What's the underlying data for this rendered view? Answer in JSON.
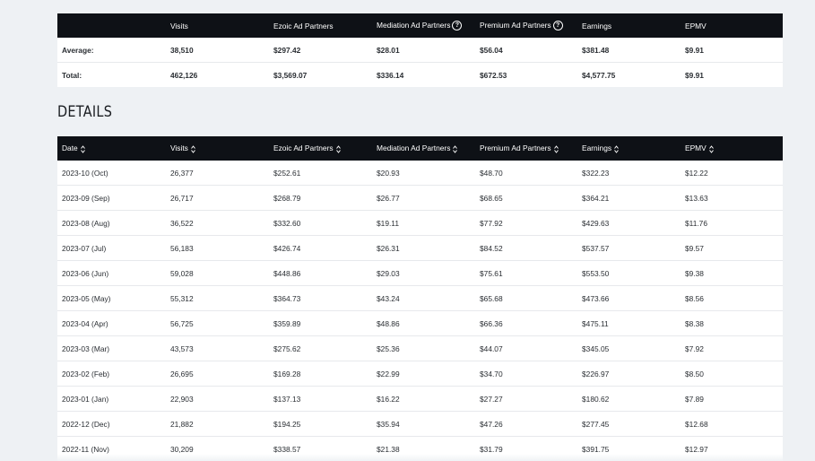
{
  "summary": {
    "headers": [
      "",
      "Visits",
      "Ezoic Ad Partners",
      "Mediation Ad Partners",
      "Premium Ad Partners",
      "Earnings",
      "EPMV"
    ],
    "rows": [
      [
        "Average:",
        "38,510",
        "$297.42",
        "$28.01",
        "$56.04",
        "$381.48",
        "$9.91"
      ],
      [
        "Total:",
        "462,126",
        "$3,569.07",
        "$336.14",
        "$672.53",
        "$4,577.75",
        "$9.91"
      ]
    ]
  },
  "details": {
    "title": "DETAILS",
    "headers": [
      "Date",
      "Visits",
      "Ezoic Ad Partners",
      "Mediation Ad Partners",
      "Premium Ad Partners",
      "Earnings",
      "EPMV"
    ],
    "rows": [
      [
        "2023-10 (Oct)",
        "26,377",
        "$252.61",
        "$20.93",
        "$48.70",
        "$322.23",
        "$12.22"
      ],
      [
        "2023-09 (Sep)",
        "26,717",
        "$268.79",
        "$26.77",
        "$68.65",
        "$364.21",
        "$13.63"
      ],
      [
        "2023-08 (Aug)",
        "36,522",
        "$332.60",
        "$19.11",
        "$77.92",
        "$429.63",
        "$11.76"
      ],
      [
        "2023-07 (Jul)",
        "56,183",
        "$426.74",
        "$26.31",
        "$84.52",
        "$537.57",
        "$9.57"
      ],
      [
        "2023-06 (Jun)",
        "59,028",
        "$448.86",
        "$29.03",
        "$75.61",
        "$553.50",
        "$9.38"
      ],
      [
        "2023-05 (May)",
        "55,312",
        "$364.73",
        "$43.24",
        "$65.68",
        "$473.66",
        "$8.56"
      ],
      [
        "2023-04 (Apr)",
        "56,725",
        "$359.89",
        "$48.86",
        "$66.36",
        "$475.11",
        "$8.38"
      ],
      [
        "2023-03 (Mar)",
        "43,573",
        "$275.62",
        "$25.36",
        "$44.07",
        "$345.05",
        "$7.92"
      ],
      [
        "2023-02 (Feb)",
        "26,695",
        "$169.28",
        "$22.99",
        "$34.70",
        "$226.97",
        "$8.50"
      ],
      [
        "2023-01 (Jan)",
        "22,903",
        "$137.13",
        "$16.22",
        "$27.27",
        "$180.62",
        "$7.89"
      ],
      [
        "2022-12 (Dec)",
        "21,882",
        "$194.25",
        "$35.94",
        "$47.26",
        "$277.45",
        "$12.68"
      ],
      [
        "2022-11 (Nov)",
        "30,209",
        "$338.57",
        "$21.38",
        "$31.79",
        "$391.75",
        "$12.97"
      ]
    ]
  },
  "help_icon_glyph": "?"
}
